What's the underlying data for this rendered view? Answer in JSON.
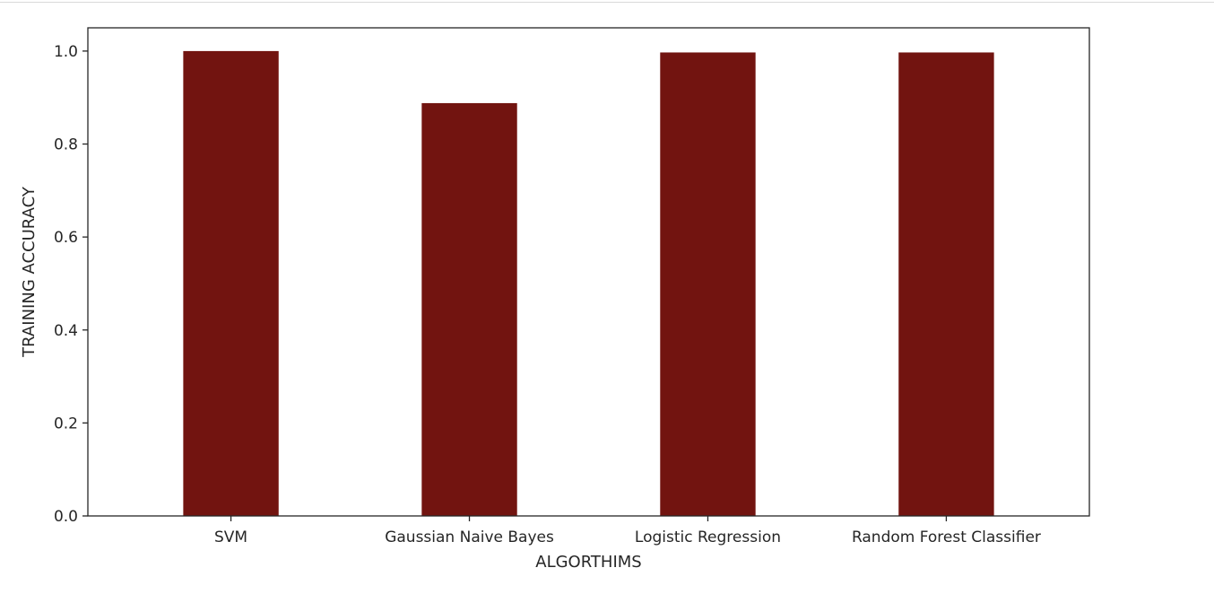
{
  "chart_data": {
    "type": "bar",
    "categories": [
      "SVM",
      "Gaussian Naive Bayes",
      "Logistic Regression",
      "Random Forest Classifier"
    ],
    "values": [
      1.0,
      0.888,
      0.997,
      0.997
    ],
    "xlabel": "ALGORTHIMS",
    "ylabel": "TRAINING ACCURACY",
    "ylim": [
      0,
      1.05
    ],
    "yticks": [
      0.0,
      0.2,
      0.4,
      0.6,
      0.8,
      1.0
    ],
    "ytick_labels": [
      "0.0",
      "0.2",
      "0.4",
      "0.6",
      "0.8",
      "1.0"
    ],
    "grid": false,
    "bar_color": "#721410",
    "axis_color": "#262626"
  }
}
